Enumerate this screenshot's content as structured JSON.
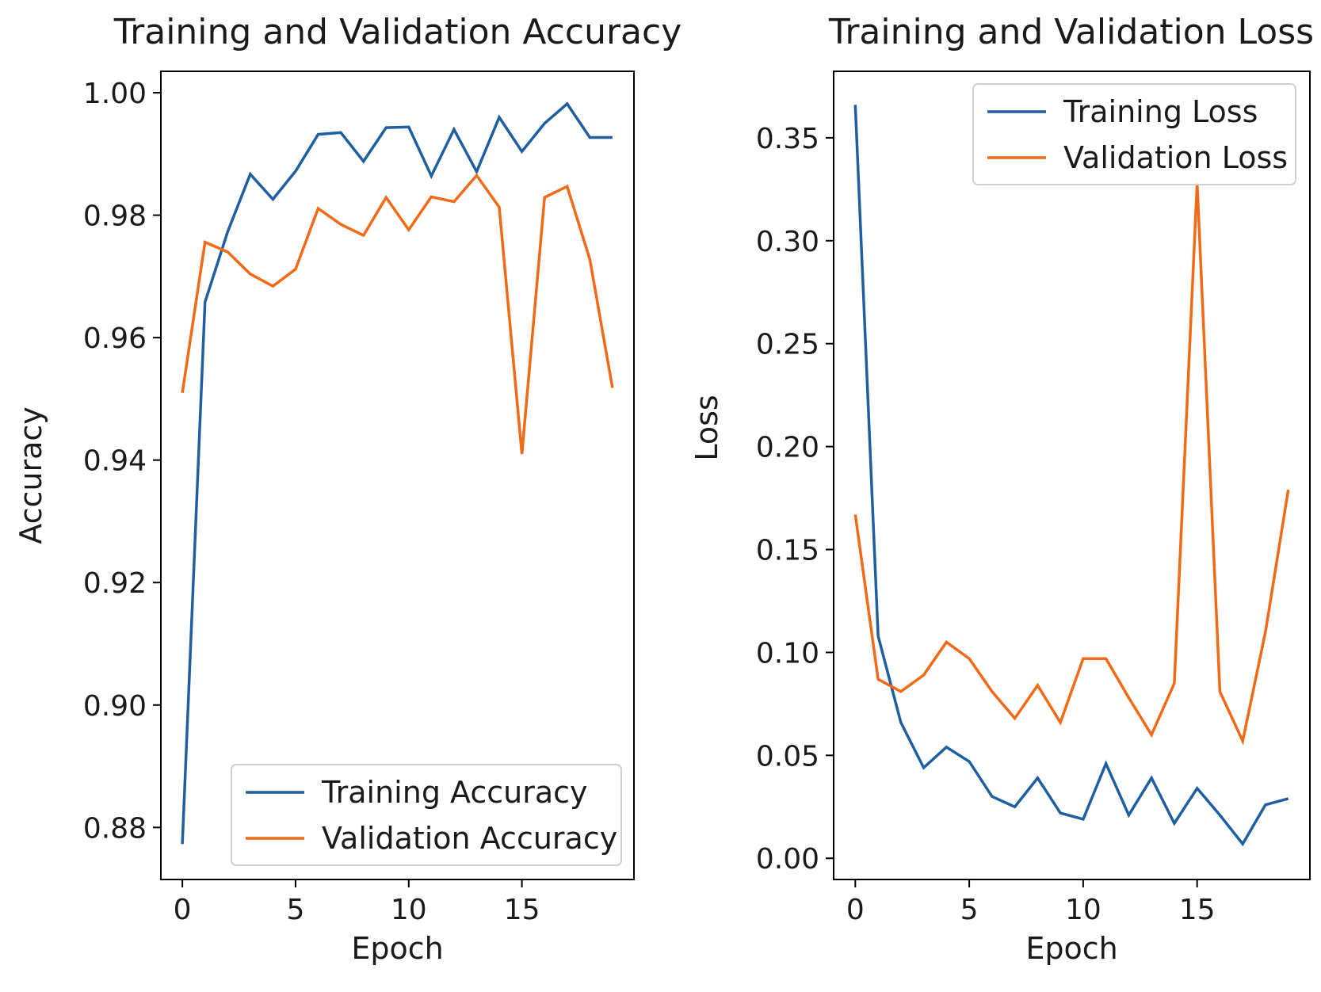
{
  "colors": {
    "training": "#1f5fa0",
    "validation": "#f26a16",
    "axis": "#000000",
    "legend_border": "#d0d0d0"
  },
  "chart_data": [
    {
      "type": "line",
      "title": "Training and Validation Accuracy",
      "xlabel": "Epoch",
      "ylabel": "Accuracy",
      "xlim": [
        -0.95,
        19.95
      ],
      "ylim": [
        0.8715,
        1.0035
      ],
      "xticks": [
        0,
        5,
        10,
        15
      ],
      "xtick_labels": [
        "0",
        "5",
        "10",
        "15"
      ],
      "yticks": [
        0.88,
        0.9,
        0.92,
        0.94,
        0.96,
        0.98,
        1.0
      ],
      "ytick_labels": [
        "0.88",
        "0.90",
        "0.92",
        "0.94",
        "0.96",
        "0.98",
        "1.00"
      ],
      "legend_position": "lower-right",
      "x": [
        0,
        1,
        2,
        3,
        4,
        5,
        6,
        7,
        8,
        9,
        10,
        11,
        12,
        13,
        14,
        15,
        16,
        17,
        18,
        19
      ],
      "series": [
        {
          "name": "Training Accuracy",
          "color_key": "training",
          "values": [
            0.8773,
            0.9658,
            0.9773,
            0.9867,
            0.9826,
            0.9872,
            0.9932,
            0.9935,
            0.9888,
            0.9943,
            0.9944,
            0.9864,
            0.994,
            0.9871,
            0.996,
            0.9904,
            0.995,
            0.9982,
            0.9927,
            0.9927
          ]
        },
        {
          "name": "Validation Accuracy",
          "color_key": "validation",
          "values": [
            0.951,
            0.9756,
            0.974,
            0.9704,
            0.9684,
            0.9712,
            0.9811,
            0.9785,
            0.9767,
            0.9829,
            0.9776,
            0.983,
            0.9822,
            0.9865,
            0.9813,
            0.941,
            0.9829,
            0.9847,
            0.9728,
            0.9518
          ]
        }
      ]
    },
    {
      "type": "line",
      "title": "Training and Validation Loss",
      "xlabel": "Epoch",
      "ylabel": "Loss",
      "xlim": [
        -0.95,
        19.95
      ],
      "ylim": [
        -0.0103,
        0.3823
      ],
      "xticks": [
        0,
        5,
        10,
        15
      ],
      "xtick_labels": [
        "0",
        "5",
        "10",
        "15"
      ],
      "yticks": [
        0.0,
        0.05,
        0.1,
        0.15,
        0.2,
        0.25,
        0.3,
        0.35
      ],
      "ytick_labels": [
        "0.00",
        "0.05",
        "0.10",
        "0.15",
        "0.20",
        "0.25",
        "0.30",
        "0.35"
      ],
      "legend_position": "upper-right",
      "x": [
        0,
        1,
        2,
        3,
        4,
        5,
        6,
        7,
        8,
        9,
        10,
        11,
        12,
        13,
        14,
        15,
        16,
        17,
        18,
        19
      ],
      "series": [
        {
          "name": "Training Loss",
          "color_key": "training",
          "values": [
            0.366,
            0.108,
            0.066,
            0.044,
            0.054,
            0.047,
            0.03,
            0.025,
            0.039,
            0.022,
            0.019,
            0.046,
            0.021,
            0.039,
            0.017,
            0.034,
            0.021,
            0.007,
            0.026,
            0.029
          ]
        },
        {
          "name": "Validation Loss",
          "color_key": "validation",
          "values": [
            0.167,
            0.087,
            0.081,
            0.089,
            0.105,
            0.097,
            0.081,
            0.068,
            0.084,
            0.066,
            0.097,
            0.097,
            0.078,
            0.06,
            0.085,
            0.328,
            0.081,
            0.057,
            0.11,
            0.179
          ]
        }
      ]
    }
  ]
}
